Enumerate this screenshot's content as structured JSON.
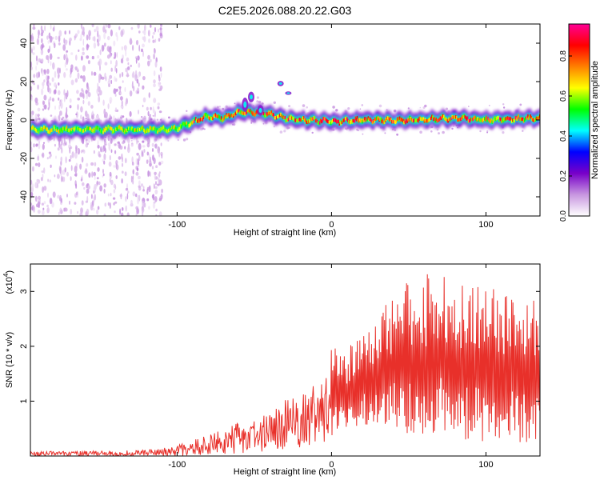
{
  "title": "C2E5.2026.088.20.22.G03",
  "colorbar": {
    "label": "Normalized spectral amplitude",
    "ticks": [
      "0.0",
      "0.2",
      "0.4",
      "0.6",
      "0.8"
    ],
    "tick_values": [
      0.0,
      0.2,
      0.4,
      0.6,
      0.8
    ],
    "range": [
      0,
      0.96
    ],
    "stops": [
      "#ffffff",
      "#c896e0",
      "#7800c8",
      "#0000ff",
      "#00ffff",
      "#00ff00",
      "#ffff00",
      "#ff8000",
      "#ff0000",
      "#ff0096"
    ]
  },
  "chart_data": [
    {
      "type": "heatmap",
      "title": "C2E5.2026.088.20.22.G03",
      "xlabel": "Height of straight line (km)",
      "ylabel": "Frequency (Hz)",
      "xlim": [
        -195,
        135
      ],
      "ylim": [
        -50,
        50
      ],
      "x_ticks": [
        -100,
        0,
        100
      ],
      "y_ticks": [
        -40,
        -20,
        0,
        20,
        40
      ],
      "x_tick_labels": [
        "-100",
        "0",
        "100"
      ],
      "y_tick_labels": [
        "-40",
        "-20",
        "0",
        "20",
        "40"
      ],
      "ridge": {
        "x": [
          -195,
          -150,
          -110,
          -100,
          -90,
          -80,
          -70,
          -60,
          -50,
          -40,
          -30,
          -20,
          -10,
          0,
          20,
          50,
          80,
          100,
          135
        ],
        "y": [
          -5,
          -5,
          -5,
          -4,
          -1,
          2,
          1,
          4,
          4,
          3,
          1,
          0,
          0,
          -1,
          0,
          0,
          1,
          0,
          1
        ]
      }
    },
    {
      "type": "line",
      "xlabel": "Height of straight line (km)",
      "ylabel": "SNR (10 * v/v)",
      "scale_label": "(x10",
      "scale_exp": "4",
      "scale_close": ")",
      "xlim": [
        -195,
        135
      ],
      "ylim": [
        0,
        3.5
      ],
      "x_ticks": [
        -100,
        0,
        100
      ],
      "y_ticks": [
        1,
        2,
        3
      ],
      "x_tick_labels": [
        "-100",
        "0",
        "100"
      ],
      "y_tick_labels": [
        "1",
        "2",
        "3"
      ],
      "color": "#e8302a",
      "envelope": {
        "x": [
          -195,
          -130,
          -110,
          -100,
          -80,
          -60,
          -40,
          -30,
          -20,
          -10,
          -5,
          0,
          10,
          20,
          30,
          40,
          50,
          60,
          70,
          80,
          90,
          100,
          110,
          120,
          135
        ],
        "upper": [
          0.08,
          0.1,
          0.14,
          0.2,
          0.38,
          0.62,
          0.78,
          1.02,
          1.18,
          1.3,
          1.32,
          1.95,
          2.0,
          2.3,
          2.6,
          2.9,
          3.2,
          3.3,
          3.45,
          3.1,
          3.2,
          3.1,
          3.0,
          2.9,
          2.9
        ],
        "floor": [
          0.0,
          0.0,
          0.0,
          0.0,
          0.02,
          0.05,
          0.08,
          0.12,
          0.15,
          0.2,
          0.25,
          0.35,
          0.45,
          0.55,
          0.6,
          0.5,
          0.4,
          0.35,
          0.35,
          0.3,
          0.25,
          0.25,
          0.25,
          0.25,
          0.25
        ]
      }
    }
  ]
}
